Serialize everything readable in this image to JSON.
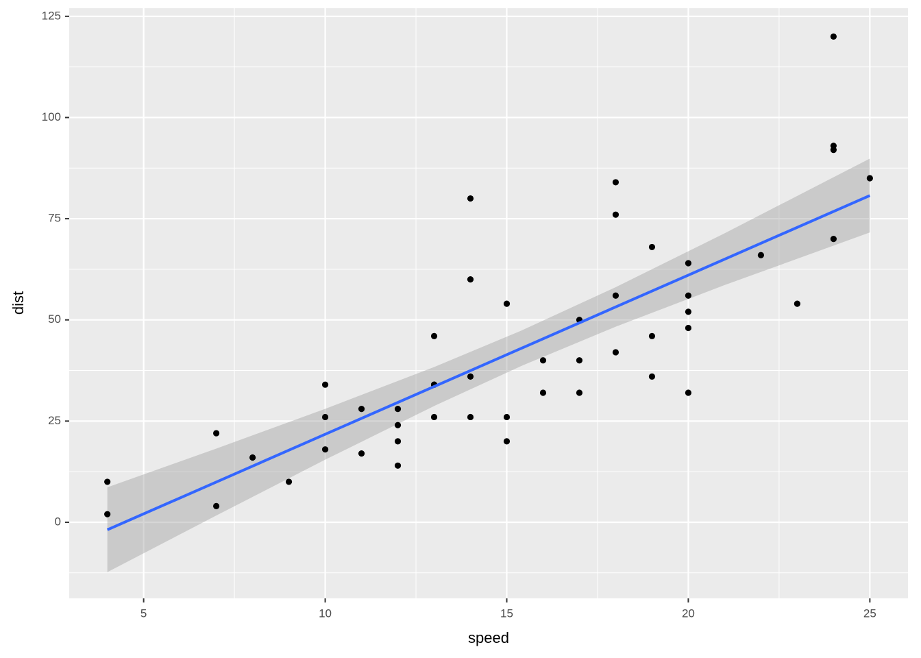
{
  "chart_data": {
    "type": "scatter",
    "x_label": "speed",
    "y_label": "dist",
    "x": [
      4,
      4,
      7,
      7,
      8,
      9,
      10,
      10,
      10,
      11,
      11,
      12,
      12,
      12,
      12,
      13,
      13,
      13,
      13,
      14,
      14,
      14,
      14,
      15,
      15,
      15,
      16,
      16,
      17,
      17,
      17,
      18,
      18,
      18,
      18,
      19,
      19,
      19,
      20,
      20,
      20,
      20,
      20,
      22,
      23,
      24,
      24,
      24,
      24,
      25
    ],
    "y": [
      2,
      10,
      4,
      22,
      16,
      10,
      18,
      26,
      34,
      17,
      28,
      14,
      20,
      24,
      28,
      26,
      34,
      34,
      46,
      26,
      36,
      60,
      80,
      20,
      26,
      54,
      32,
      40,
      32,
      40,
      50,
      42,
      56,
      76,
      84,
      36,
      46,
      68,
      32,
      48,
      52,
      56,
      64,
      66,
      54,
      70,
      92,
      93,
      120,
      85
    ],
    "point_color": "#000000",
    "smooth": {
      "color": "#3366ff",
      "band_color": "#999999",
      "x": [
        4,
        7,
        10,
        13,
        15.4,
        18,
        21,
        25
      ],
      "fit": [
        -1.85,
        9.94,
        21.74,
        33.54,
        42.97,
        53.2,
        64.99,
        80.72
      ],
      "lower": [
        -12.33,
        1.67,
        15.46,
        28.73,
        38.61,
        48.32,
        58.6,
        71.6
      ],
      "upper": [
        8.63,
        18.21,
        28.02,
        38.35,
        47.35,
        58.08,
        71.4,
        89.86
      ]
    },
    "xlim": [
      2.95,
      26.05
    ],
    "ylim": [
      -18.8,
      127
    ],
    "xticks": [
      5,
      10,
      15,
      20,
      25
    ],
    "yticks": [
      0,
      25,
      50,
      75,
      100,
      125
    ],
    "x_minor_ticks": [
      2.5,
      7.5,
      12.5,
      17.5,
      22.5
    ],
    "y_minor_ticks": [
      -12.5,
      12.5,
      37.5,
      62.5,
      87.5,
      112.5
    ],
    "grid": true
  }
}
